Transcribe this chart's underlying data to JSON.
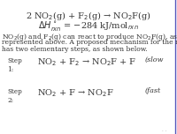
{
  "bg_color": "#ffffff",
  "title_line1": "2 NO$_2$(g) + F$_2$(g) → NO$_2$F(g)",
  "title_line2": "$\\Delta H^\\circ_{rxn}$ = −284 kJ/mol$_{rxn}$",
  "body_line1": "NO$_2$(g) and F$_2$(g) can react to produce NO$_2$F(g), as",
  "body_line2": "represented above. A proposed mechanism for the reaction",
  "body_line3": "has two elementary steps, as shown below.",
  "step1_label": "Step\n1:",
  "step1_eq": "NO$_2$ + F$_2$ → NO$_2$F + F",
  "step1_note": "(slow",
  "step2_label": "Step\n2:",
  "step2_eq": "NO$_2$ + F → NO$_2$F",
  "step2_note": "(fast",
  "title_fontsize": 7.0,
  "body_fontsize": 5.5,
  "step_label_fontsize": 5.2,
  "step_eq_fontsize": 7.0,
  "step_note_fontsize": 5.8,
  "text_color": "#333333",
  "border_color": "#5555bb",
  "border_linewidth": 1.0
}
